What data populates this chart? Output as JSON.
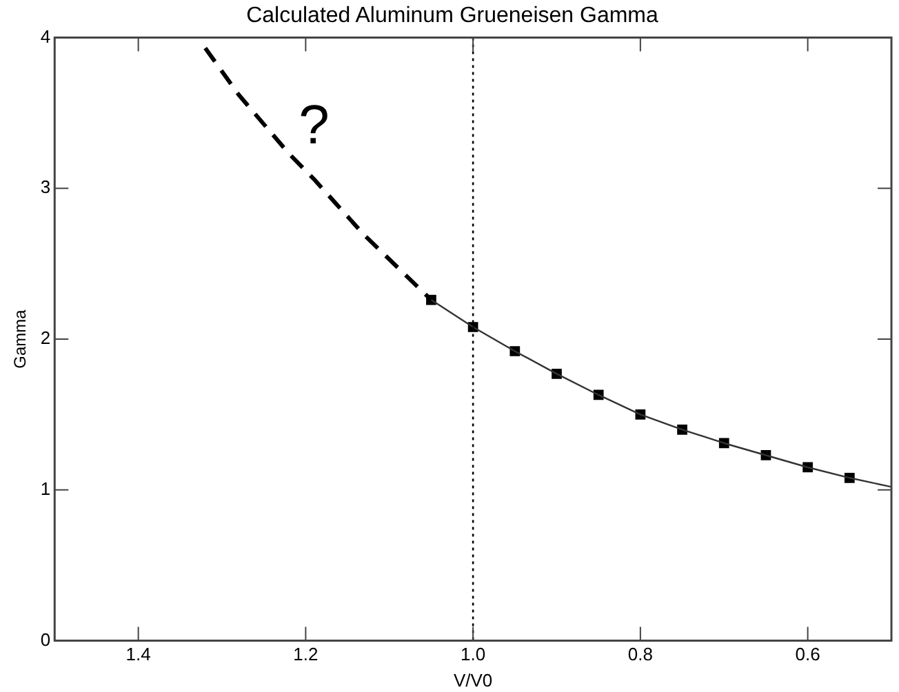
{
  "chart_data": {
    "type": "line",
    "title": "Calculated Aluminum Grueneisen Gamma",
    "xlabel": "V/V0",
    "ylabel": "Gamma",
    "xlim": [
      1.5,
      0.5
    ],
    "xticks": [
      {
        "value": 1.4,
        "label": "1.4"
      },
      {
        "value": 1.2,
        "label": "1.2"
      },
      {
        "value": 1.0,
        "label": "1.0"
      },
      {
        "value": 0.8,
        "label": "0.8"
      },
      {
        "value": 0.6,
        "label": "0.6"
      }
    ],
    "ylim": [
      0,
      4
    ],
    "yticks": [
      0,
      1,
      2,
      3,
      4
    ],
    "grid": false,
    "legend": false,
    "series": [
      {
        "line_style": "dashed",
        "marker": "none",
        "color": "#000000",
        "x": [
          1.32,
          1.28,
          1.22,
          1.19,
          1.13,
          1.05
        ],
        "values": [
          3.93,
          3.62,
          3.23,
          3.06,
          2.69,
          2.26
        ]
      },
      {
        "line_style": "solid",
        "marker": "none",
        "color": "#333333",
        "x": [
          1.05,
          1.0,
          0.95,
          0.9,
          0.85,
          0.8,
          0.75,
          0.7,
          0.65,
          0.6,
          0.55,
          0.5
        ],
        "values": [
          2.26,
          2.08,
          1.92,
          1.77,
          1.63,
          1.5,
          1.4,
          1.31,
          1.23,
          1.15,
          1.08,
          1.02
        ]
      },
      {
        "type": "scatter",
        "marker": "square",
        "color": "#000000",
        "x": [
          1.05,
          1.0,
          0.95,
          0.9,
          0.85,
          0.8,
          0.75,
          0.7,
          0.65,
          0.6,
          0.55
        ],
        "values": [
          2.26,
          2.08,
          1.92,
          1.77,
          1.63,
          1.5,
          1.4,
          1.31,
          1.23,
          1.15,
          1.08
        ]
      }
    ],
    "ref_lines": [
      {
        "axis": "x",
        "value": 1.0,
        "line_style": "dotted",
        "color": "#000000"
      }
    ],
    "annotations": [
      "?"
    ]
  }
}
